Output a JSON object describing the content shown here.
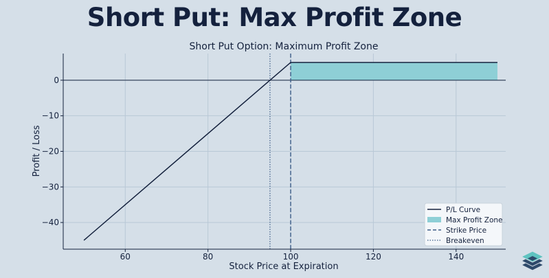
{
  "banner_title": "Short Put: Max Profit Zone",
  "colors": {
    "background": "#d5dfe8",
    "title": "#14213d",
    "line": "#14213d",
    "zone_fill": "#8ecfd6",
    "strike": "#3b5b86",
    "breakeven": "#3b5b86",
    "logo_dark": "#2e4a6b",
    "logo_teal": "#5fc3c0"
  },
  "logo_icon": "stacked-layers-icon",
  "chart_data": {
    "type": "line",
    "title": "Short Put Option: Maximum Profit Zone",
    "xlabel": "Stock Price at Expiration",
    "ylabel": "Profit / Loss",
    "xlim": [
      45,
      152
    ],
    "ylim": [
      -47.5,
      7.5
    ],
    "xticks": [
      60,
      80,
      100,
      120,
      140
    ],
    "xtick_labels": [
      "60",
      "80",
      "100",
      "120",
      "140"
    ],
    "yticks": [
      0,
      -10,
      -20,
      -30,
      -40
    ],
    "ytick_labels": [
      "0",
      "−10",
      "−20",
      "−30",
      "−40"
    ],
    "grid": true,
    "legend_position": "bottom-right",
    "series": [
      {
        "name": "P/L Curve",
        "x": [
          50,
          100,
          150
        ],
        "y": [
          -45,
          5,
          5
        ]
      }
    ],
    "max_profit_zone": {
      "name": "Max Profit Zone",
      "x": [
        100,
        150
      ],
      "y_low": 0,
      "y_high": 5
    },
    "strike_price": {
      "name": "Strike Price",
      "x": 100
    },
    "breakeven": {
      "name": "Breakeven",
      "x": 95
    },
    "zero_line": 0,
    "legend": [
      "P/L Curve",
      "Max Profit Zone",
      "Strike Price",
      "Breakeven"
    ]
  }
}
